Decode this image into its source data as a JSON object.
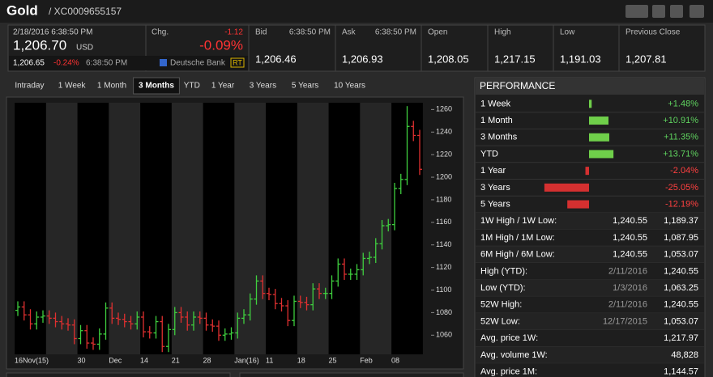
{
  "header": {
    "title": "Gold",
    "isin": "/ XC0009655157"
  },
  "quote": {
    "last": {
      "time": "2/18/2016 6:38:50 PM",
      "price": "1,206.70",
      "currency": "USD"
    },
    "change": {
      "label": "Chg.",
      "abs": "-1.12",
      "pct": "-0.09%"
    },
    "sub": {
      "price": "1,206.65",
      "pct": "-0.24%",
      "time": "6:38:50 PM",
      "source": "Deutsche Bank",
      "badge": "RT"
    },
    "fields": [
      {
        "label": "Bid",
        "time": "6:38:50 PM",
        "value": "1,206.46"
      },
      {
        "label": "Ask",
        "time": "6:38:50 PM",
        "value": "1,206.93"
      },
      {
        "label": "Open",
        "value": "1,208.05"
      },
      {
        "label": "High",
        "value": "1,217.15"
      },
      {
        "label": "Low",
        "value": "1,191.03"
      },
      {
        "label": "Previous Close",
        "value": "1,207.81"
      }
    ]
  },
  "tabs": {
    "items": [
      "Intraday",
      "1 Week",
      "1 Month",
      "3 Months",
      "YTD",
      "1 Year",
      "3 Years",
      "5 Years",
      "10 Years"
    ],
    "active": 3
  },
  "chart_data": {
    "type": "ohlc",
    "categories": [
      "16Nov(15)",
      null,
      null,
      null,
      null,
      null,
      null,
      null,
      null,
      null,
      "30",
      null,
      null,
      null,
      null,
      "Dec",
      null,
      null,
      null,
      null,
      "14",
      null,
      null,
      null,
      null,
      "21",
      null,
      null,
      null,
      null,
      "28",
      null,
      null,
      null,
      null,
      "Jan(16)",
      null,
      null,
      null,
      null,
      "11",
      null,
      null,
      null,
      null,
      "18",
      null,
      null,
      null,
      null,
      "25",
      null,
      null,
      null,
      null,
      "Feb",
      null,
      null,
      null,
      null,
      "08",
      null,
      null,
      null,
      null
    ],
    "open": [
      1082,
      1085,
      1078,
      1070,
      1076,
      1077,
      1075,
      1072,
      1070,
      1069,
      1057,
      1064,
      1053,
      1052,
      1061,
      1084,
      1075,
      1074,
      1072,
      1070,
      1076,
      1063,
      1062,
      1072,
      1050,
      1065,
      1080,
      1076,
      1069,
      1076,
      1075,
      1069,
      1068,
      1060,
      1061,
      1062,
      1075,
      1078,
      1092,
      1108,
      1097,
      1096,
      1088,
      1086,
      1073,
      1090,
      1089,
      1087,
      1101,
      1097,
      1097,
      1108,
      1123,
      1114,
      1114,
      1118,
      1128,
      1129,
      1141,
      1157,
      1158,
      1190,
      1198,
      1245,
      1237
    ],
    "high": [
      1090,
      1090,
      1083,
      1081,
      1082,
      1082,
      1080,
      1077,
      1075,
      1074,
      1069,
      1069,
      1058,
      1066,
      1089,
      1089,
      1080,
      1079,
      1077,
      1081,
      1081,
      1068,
      1077,
      1077,
      1070,
      1085,
      1085,
      1081,
      1081,
      1081,
      1080,
      1074,
      1073,
      1066,
      1067,
      1080,
      1083,
      1097,
      1113,
      1113,
      1102,
      1101,
      1093,
      1091,
      1095,
      1095,
      1094,
      1106,
      1106,
      1102,
      1113,
      1128,
      1128,
      1119,
      1123,
      1133,
      1134,
      1146,
      1162,
      1163,
      1195,
      1203,
      1263,
      1250,
      1242
    ],
    "low": [
      1077,
      1073,
      1065,
      1065,
      1071,
      1070,
      1067,
      1065,
      1064,
      1052,
      1052,
      1048,
      1047,
      1047,
      1056,
      1070,
      1069,
      1067,
      1065,
      1065,
      1058,
      1057,
      1057,
      1045,
      1045,
      1060,
      1071,
      1064,
      1064,
      1070,
      1064,
      1063,
      1055,
      1055,
      1056,
      1057,
      1070,
      1073,
      1087,
      1092,
      1091,
      1083,
      1081,
      1068,
      1068,
      1084,
      1082,
      1082,
      1092,
      1092,
      1092,
      1103,
      1109,
      1109,
      1109,
      1113,
      1123,
      1124,
      1136,
      1152,
      1153,
      1185,
      1193,
      1232,
      1202
    ],
    "close": [
      1085,
      1078,
      1070,
      1076,
      1077,
      1075,
      1072,
      1070,
      1069,
      1057,
      1064,
      1053,
      1052,
      1061,
      1084,
      1075,
      1074,
      1072,
      1070,
      1076,
      1063,
      1062,
      1072,
      1050,
      1065,
      1080,
      1076,
      1069,
      1076,
      1075,
      1069,
      1068,
      1060,
      1061,
      1062,
      1075,
      1078,
      1092,
      1108,
      1097,
      1096,
      1088,
      1086,
      1073,
      1090,
      1089,
      1087,
      1101,
      1097,
      1097,
      1108,
      1123,
      1114,
      1114,
      1118,
      1128,
      1129,
      1141,
      1157,
      1158,
      1190,
      1198,
      1245,
      1237,
      1207
    ],
    "ylim": [
      1043,
      1266
    ],
    "yticks": [
      1060,
      1080,
      1100,
      1120,
      1140,
      1160,
      1180,
      1200,
      1220,
      1240,
      1260
    ],
    "up_color": "#3fcf3f",
    "down_color": "#e03030"
  },
  "performance": {
    "title": "PERFORMANCE",
    "labels": [
      "1 Week",
      "1 Month",
      "3 Months",
      "YTD",
      "1 Year",
      "3 Years",
      "5 Years"
    ],
    "values": [
      1.48,
      10.91,
      11.35,
      13.71,
      -2.04,
      -25.05,
      -12.19
    ],
    "value_labels": [
      "+1.48%",
      "+10.91%",
      "+11.35%",
      "+13.71%",
      "-2.04%",
      "-25.05%",
      "-12.19%"
    ]
  },
  "stats": {
    "rows": [
      [
        "1W High / 1W Low:",
        "1,240.55",
        "1,189.37"
      ],
      [
        "1M High / 1M Low:",
        "1,240.55",
        "1,087.95"
      ],
      [
        "6M High / 6M Low:",
        "1,240.55",
        "1,053.07"
      ],
      [
        "High (YTD):",
        "2/11/2016",
        "1,240.55"
      ],
      [
        "Low (YTD):",
        "1/3/2016",
        "1,063.25"
      ],
      [
        "52W High:",
        "2/11/2016",
        "1,240.55"
      ],
      [
        "52W Low:",
        "12/17/2015",
        "1,053.07"
      ],
      [
        "Avg. price 1W:",
        "1,217.97"
      ],
      [
        "Avg. volume 1W:",
        "48,828"
      ],
      [
        "Avg. price 1M:",
        "1,144.57"
      ]
    ]
  }
}
